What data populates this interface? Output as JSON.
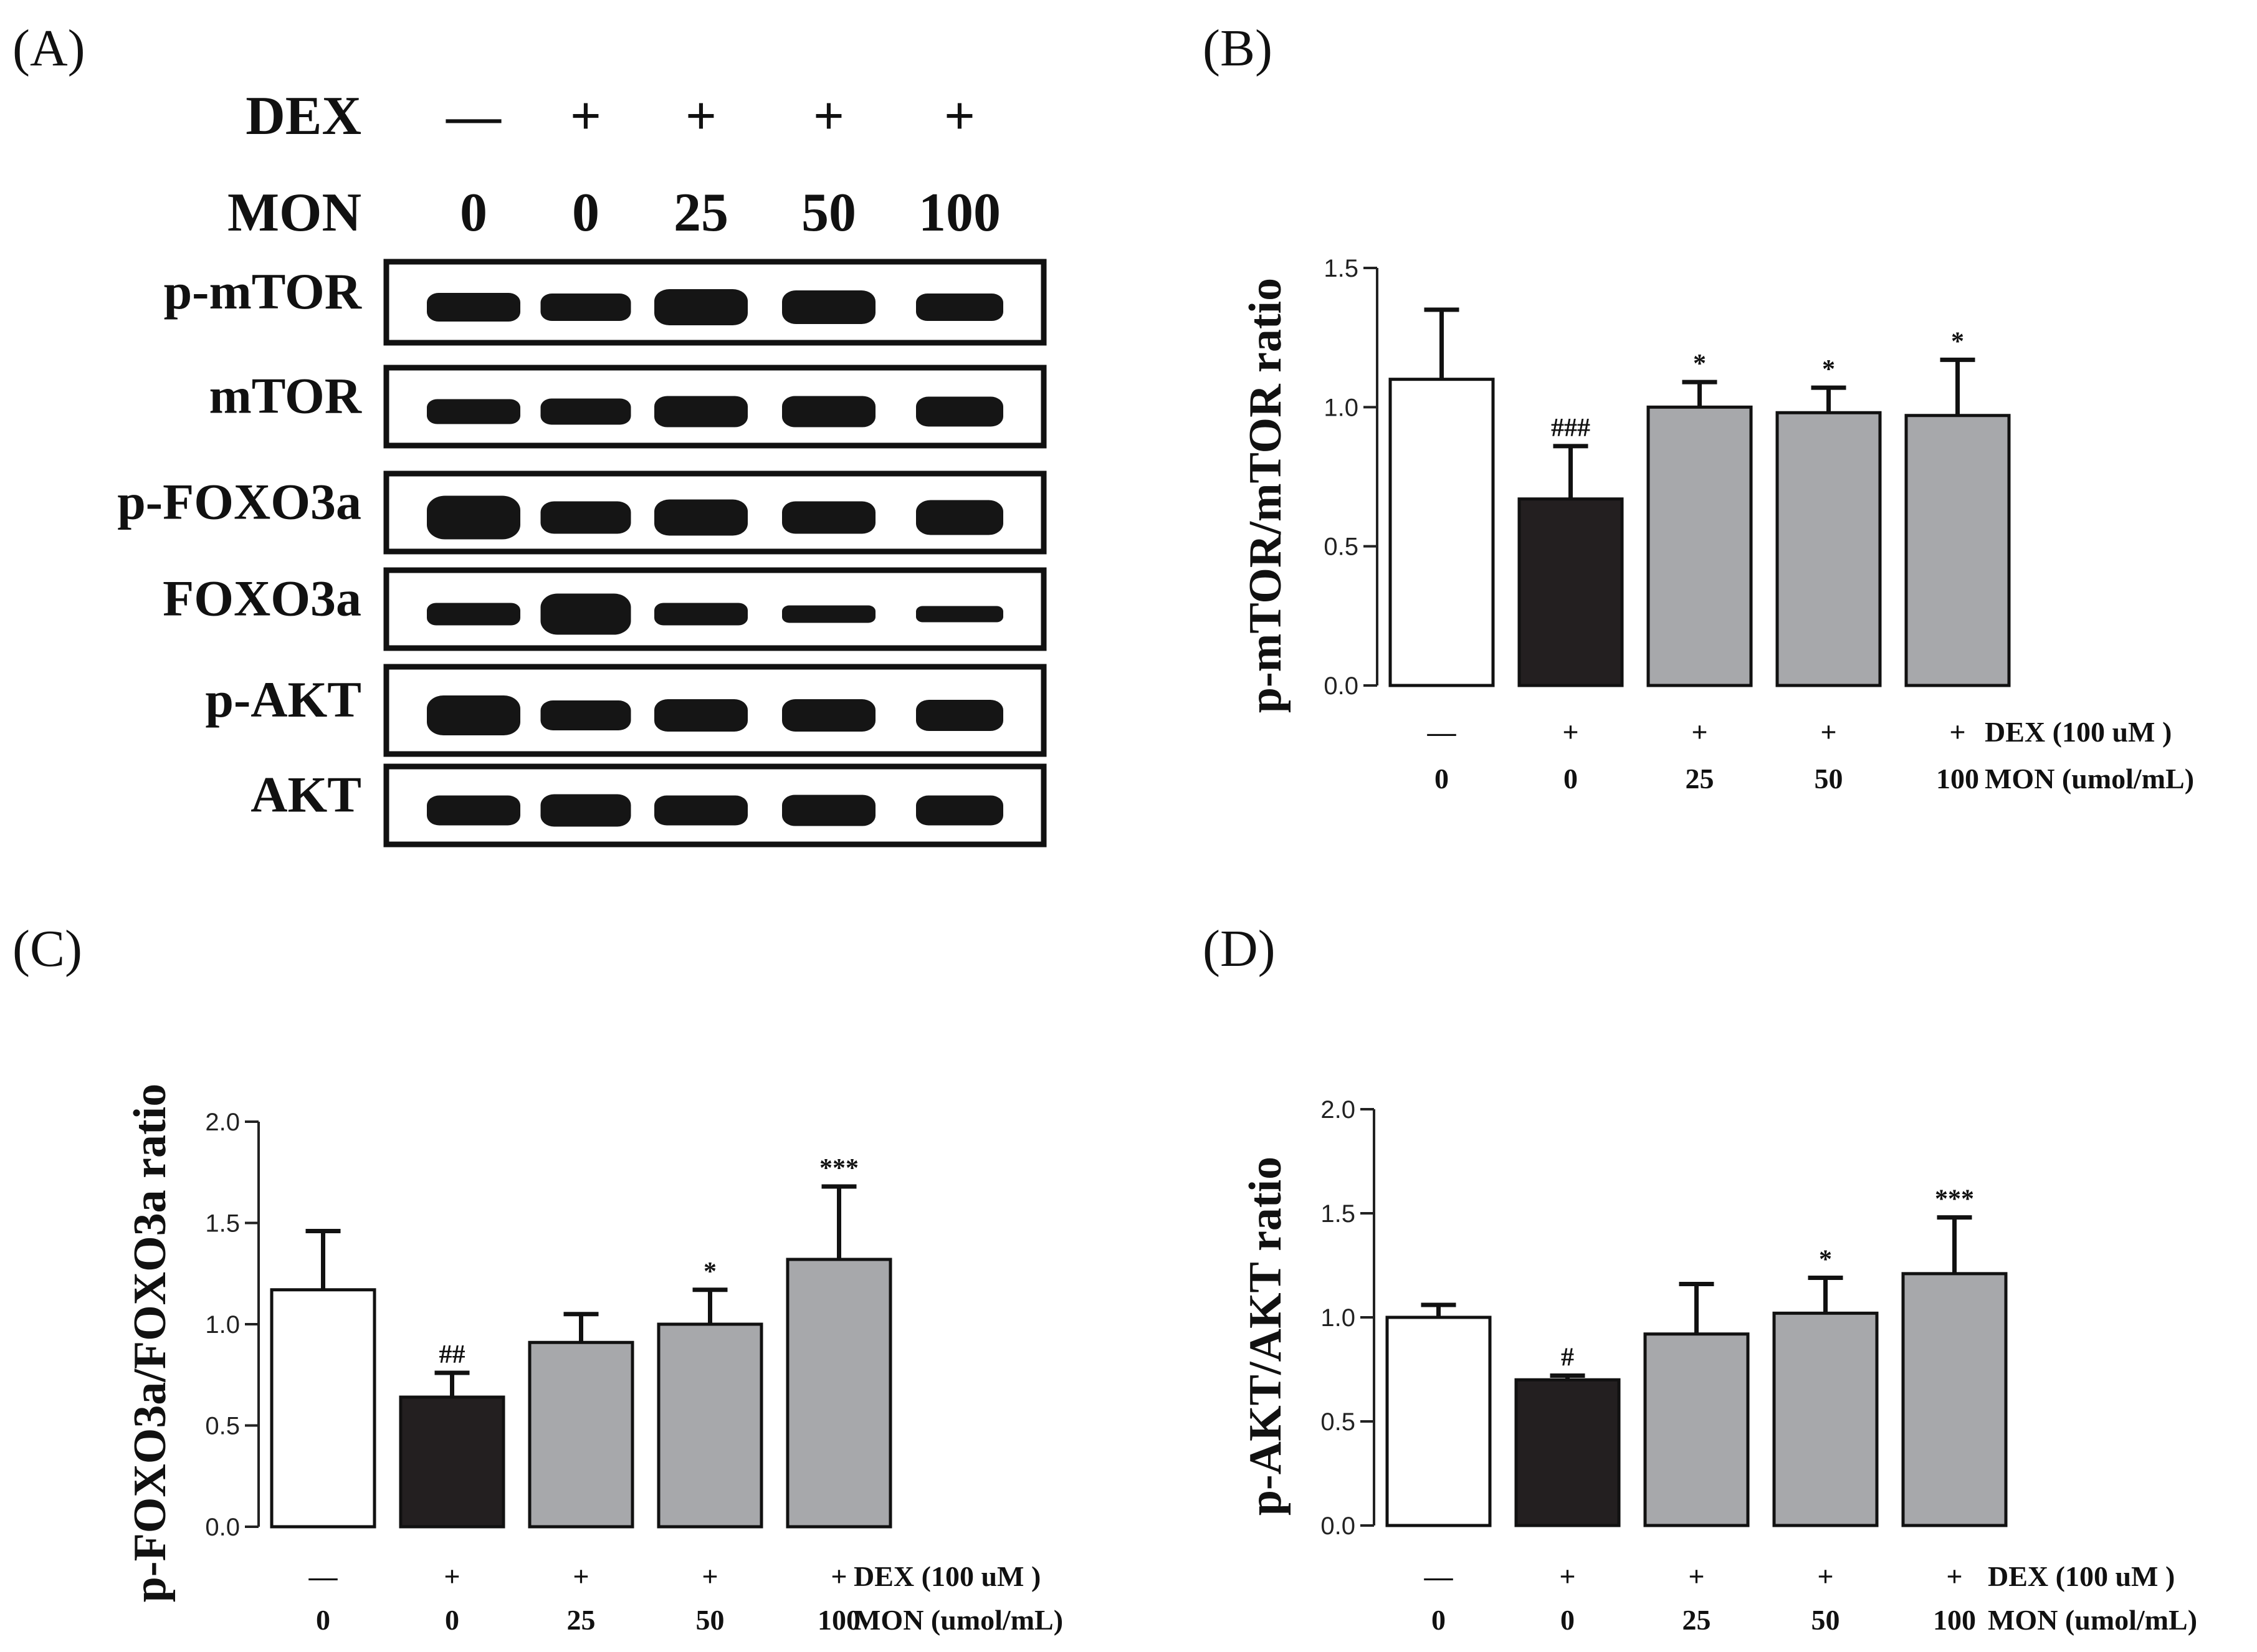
{
  "figure": {
    "panel_labels": [
      "(A)",
      "(B)",
      "(C)",
      "(D)"
    ]
  },
  "blot": {
    "dex_label": "DEX",
    "mon_label": "MON",
    "dex_values": [
      "—",
      "+",
      "+",
      "+",
      "+"
    ],
    "mon_values": [
      "0",
      "0",
      "25",
      "50",
      "100"
    ],
    "rows": [
      "p-mTOR",
      "mTOR",
      "p-FOXO3a",
      "FOXO3a",
      "p-AKT",
      "AKT"
    ]
  },
  "colors": {
    "control": "#ffffff",
    "dex": "#231f20",
    "treated": "#a7a8ab",
    "ink": "#111111"
  },
  "chart_data": [
    {
      "panel": "(B)",
      "type": "bar",
      "ylabel": "p-mTOR/mTOR ratio",
      "ylim": [
        0,
        1.5
      ],
      "yticks": [
        "0.0",
        "0.5",
        "1.0",
        "1.5"
      ],
      "dex_row": [
        "—",
        "+",
        "+",
        "+",
        "+"
      ],
      "mon_row": [
        "0",
        "0",
        "25",
        "50",
        "100"
      ],
      "dex_caption": "DEX (100 uM )",
      "mon_caption": "MON (umol/mL)",
      "values": [
        1.1,
        0.67,
        1.0,
        0.98,
        0.97
      ],
      "errors": [
        0.25,
        0.19,
        0.09,
        0.09,
        0.2
      ],
      "annotations": [
        "",
        "###",
        "*",
        "*",
        "*"
      ]
    },
    {
      "panel": "(C)",
      "type": "bar",
      "ylabel": "p-FOXO3a/FOXO3a ratio",
      "ylim": [
        0,
        2.0
      ],
      "yticks": [
        "0.0",
        "0.5",
        "1.0",
        "1.5",
        "2.0"
      ],
      "dex_row": [
        "—",
        "+",
        "+",
        "+",
        "+"
      ],
      "mon_row": [
        "0",
        "0",
        "25",
        "50",
        "100"
      ],
      "dex_caption": "DEX (100 uM )",
      "mon_caption": "MON (umol/mL)",
      "values": [
        1.17,
        0.64,
        0.91,
        1.0,
        1.32
      ],
      "errors": [
        0.29,
        0.12,
        0.14,
        0.17,
        0.36
      ],
      "annotations": [
        "",
        "##",
        "",
        "*",
        "***"
      ]
    },
    {
      "panel": "(D)",
      "type": "bar",
      "ylabel": "p-AKT/AKT ratio",
      "ylim": [
        0,
        2.0
      ],
      "yticks": [
        "0.0",
        "0.5",
        "1.0",
        "1.5",
        "2.0"
      ],
      "dex_row": [
        "—",
        "+",
        "+",
        "+",
        "+"
      ],
      "mon_row": [
        "0",
        "0",
        "25",
        "50",
        "100"
      ],
      "dex_caption": "DEX (100 uM )",
      "mon_caption": "MON (umol/mL)",
      "values": [
        1.0,
        0.7,
        0.92,
        1.02,
        1.21
      ],
      "errors": [
        0.06,
        0.02,
        0.24,
        0.17,
        0.27
      ],
      "annotations": [
        "",
        "#",
        "",
        "*",
        "***"
      ]
    }
  ]
}
